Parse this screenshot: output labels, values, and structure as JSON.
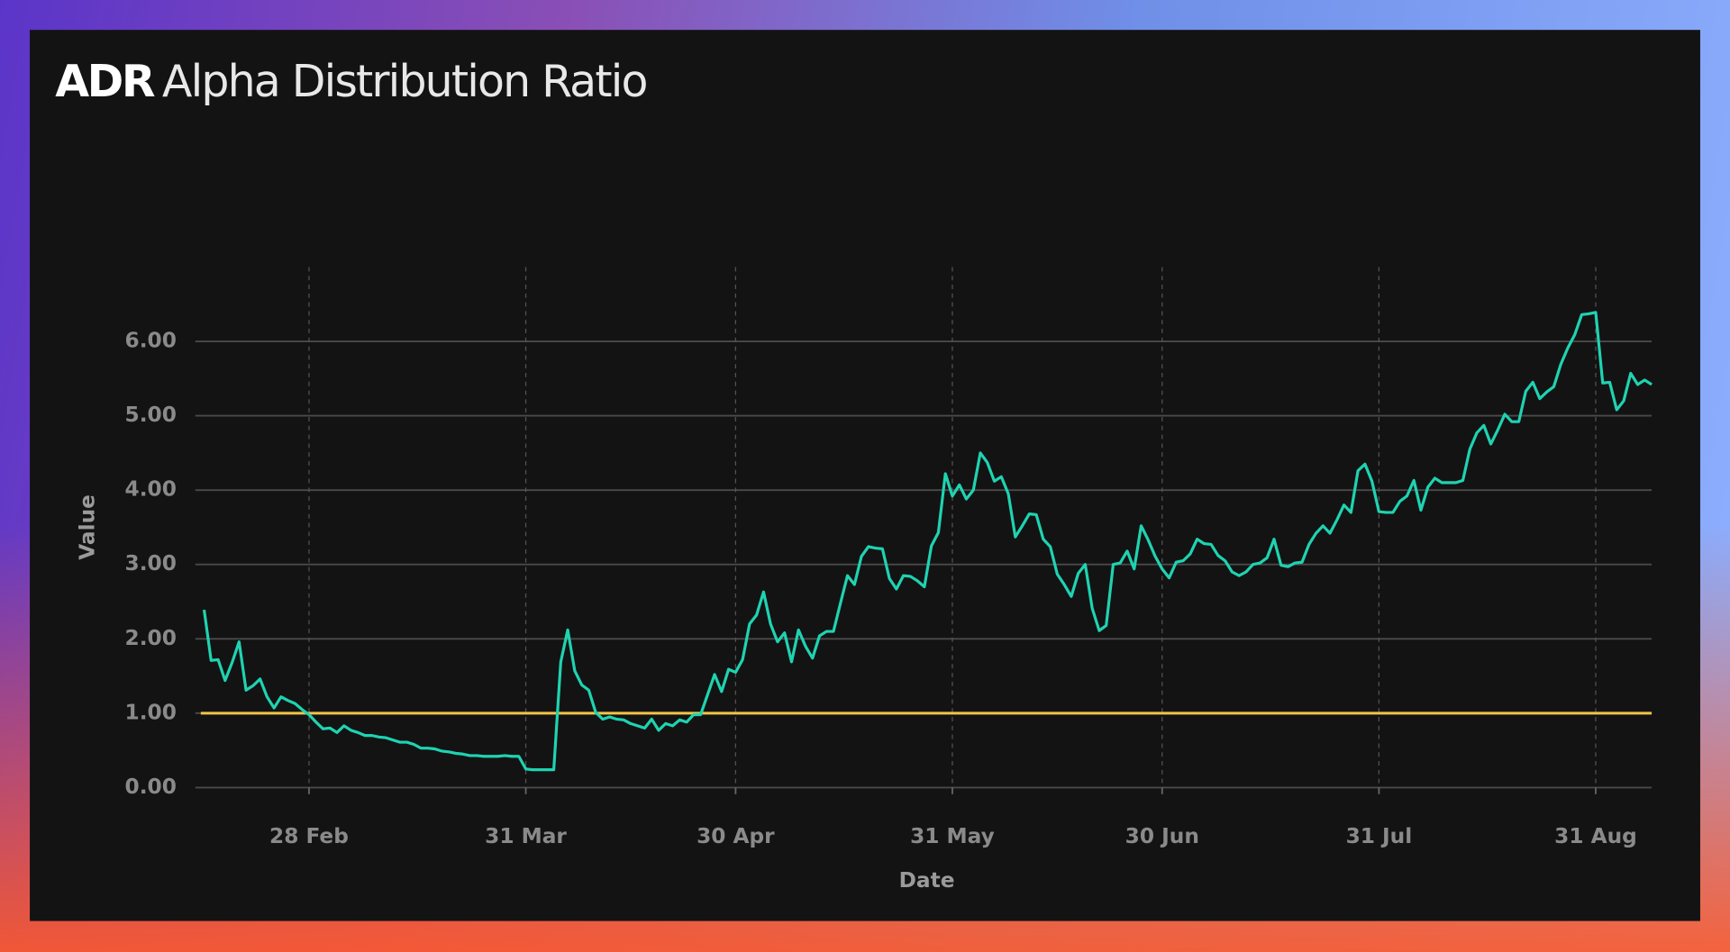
{
  "chart_data": {
    "type": "line",
    "title_abbr": "ADR",
    "title": "Alpha Distribution Ratio",
    "x_label": "Date",
    "y_label": "Value",
    "color": "#1fd3b1",
    "categories": [
      "13 Feb",
      "14 Feb",
      "15 Feb",
      "16 Feb",
      "17 Feb",
      "18 Feb",
      "19 Feb",
      "20 Feb",
      "21 Feb",
      "22 Feb",
      "23 Feb",
      "24 Feb",
      "25 Feb",
      "26 Feb",
      "27 Feb",
      "28 Feb",
      "1 Mar",
      "2 Mar",
      "3 Mar",
      "4 Mar",
      "5 Mar",
      "6 Mar",
      "7 Mar",
      "8 Mar",
      "9 Mar",
      "10 Mar",
      "11 Mar",
      "12 Mar",
      "13 Mar",
      "14 Mar",
      "15 Mar",
      "16 Mar",
      "17 Mar",
      "18 Mar",
      "19 Mar",
      "20 Mar",
      "21 Mar",
      "22 Mar",
      "23 Mar",
      "24 Mar",
      "25 Mar",
      "26 Mar",
      "27 Mar",
      "28 Mar",
      "29 Mar",
      "30 Mar",
      "31 Mar",
      "1 Apr",
      "2 Apr",
      "3 Apr",
      "4 Apr",
      "5 Apr",
      "6 Apr",
      "7 Apr",
      "8 Apr",
      "9 Apr",
      "10 Apr",
      "11 Apr",
      "12 Apr",
      "13 Apr",
      "14 Apr",
      "15 Apr",
      "16 Apr",
      "17 Apr",
      "18 Apr",
      "19 Apr",
      "20 Apr",
      "21 Apr",
      "22 Apr",
      "23 Apr",
      "24 Apr",
      "25 Apr",
      "26 Apr",
      "27 Apr",
      "28 Apr",
      "29 Apr",
      "30 Apr",
      "1 May",
      "2 May",
      "3 May",
      "4 May",
      "5 May",
      "6 May",
      "7 May",
      "8 May",
      "9 May",
      "10 May",
      "11 May",
      "12 May",
      "13 May",
      "14 May",
      "15 May",
      "16 May",
      "17 May",
      "18 May",
      "19 May",
      "20 May",
      "21 May",
      "22 May",
      "23 May",
      "24 May",
      "25 May",
      "26 May",
      "27 May",
      "28 May",
      "29 May",
      "30 May",
      "31 May",
      "1 Jun",
      "2 Jun",
      "3 Jun",
      "4 Jun",
      "5 Jun",
      "6 Jun",
      "7 Jun",
      "8 Jun",
      "9 Jun",
      "10 Jun",
      "11 Jun",
      "12 Jun",
      "13 Jun",
      "14 Jun",
      "15 Jun",
      "16 Jun",
      "17 Jun",
      "18 Jun",
      "19 Jun",
      "20 Jun",
      "21 Jun",
      "22 Jun",
      "23 Jun",
      "24 Jun",
      "25 Jun",
      "26 Jun",
      "27 Jun",
      "28 Jun",
      "29 Jun",
      "30 Jun",
      "1 Jul",
      "2 Jul",
      "3 Jul",
      "4 Jul",
      "5 Jul",
      "6 Jul",
      "7 Jul",
      "8 Jul",
      "9 Jul",
      "10 Jul",
      "11 Jul",
      "12 Jul",
      "13 Jul",
      "14 Jul",
      "15 Jul",
      "16 Jul",
      "17 Jul",
      "18 Jul",
      "19 Jul",
      "20 Jul",
      "21 Jul",
      "22 Jul",
      "23 Jul",
      "24 Jul",
      "25 Jul",
      "26 Jul",
      "27 Jul",
      "28 Jul",
      "29 Jul",
      "30 Jul",
      "31 Jul",
      "1 Aug",
      "2 Aug",
      "3 Aug",
      "4 Aug",
      "5 Aug",
      "6 Aug",
      "7 Aug",
      "8 Aug",
      "9 Aug",
      "10 Aug",
      "11 Aug",
      "12 Aug",
      "13 Aug",
      "14 Aug",
      "15 Aug",
      "16 Aug",
      "17 Aug",
      "18 Aug",
      "19 Aug",
      "20 Aug",
      "21 Aug",
      "22 Aug",
      "23 Aug",
      "24 Aug",
      "25 Aug",
      "26 Aug",
      "27 Aug",
      "28 Aug",
      "29 Aug",
      "30 Aug",
      "31 Aug",
      "1 Sep",
      "2 Sep",
      "3 Sep",
      "4 Sep",
      "5 Sep",
      "6 Sep",
      "7 Sep",
      "8 Sep"
    ],
    "values": [
      2.39,
      1.71,
      1.72,
      1.44,
      1.68,
      1.96,
      1.31,
      1.37,
      1.46,
      1.22,
      1.07,
      1.22,
      1.17,
      1.13,
      1.05,
      0.98,
      0.88,
      0.79,
      0.8,
      0.74,
      0.83,
      0.77,
      0.74,
      0.7,
      0.7,
      0.68,
      0.67,
      0.64,
      0.61,
      0.61,
      0.58,
      0.53,
      0.53,
      0.52,
      0.49,
      0.48,
      0.46,
      0.45,
      0.43,
      0.43,
      0.42,
      0.42,
      0.42,
      0.43,
      0.42,
      0.42,
      0.25,
      0.24,
      0.24,
      0.24,
      0.24,
      1.69,
      2.12,
      1.57,
      1.38,
      1.31,
      1.01,
      0.92,
      0.95,
      0.92,
      0.91,
      0.86,
      0.83,
      0.8,
      0.92,
      0.77,
      0.86,
      0.83,
      0.91,
      0.88,
      0.98,
      0.98,
      1.25,
      1.52,
      1.29,
      1.59,
      1.55,
      1.72,
      2.2,
      2.32,
      2.63,
      2.2,
      1.96,
      2.08,
      1.69,
      2.12,
      1.9,
      1.74,
      2.04,
      2.1,
      2.1,
      2.48,
      2.85,
      2.73,
      3.11,
      3.24,
      3.22,
      3.21,
      2.81,
      2.67,
      2.85,
      2.84,
      2.78,
      2.7,
      3.25,
      3.43,
      4.22,
      3.92,
      4.07,
      3.88,
      4.0,
      4.5,
      4.37,
      4.12,
      4.18,
      3.95,
      3.37,
      3.52,
      3.68,
      3.67,
      3.34,
      3.24,
      2.87,
      2.73,
      2.57,
      2.88,
      3.0,
      2.41,
      2.11,
      2.18,
      3.0,
      3.02,
      3.18,
      2.94,
      3.52,
      3.33,
      3.11,
      2.94,
      2.82,
      3.03,
      3.05,
      3.14,
      3.34,
      3.28,
      3.27,
      3.12,
      3.05,
      2.9,
      2.85,
      2.9,
      3.0,
      3.02,
      3.09,
      3.34,
      2.99,
      2.97,
      3.02,
      3.03,
      3.27,
      3.42,
      3.52,
      3.42,
      3.6,
      3.8,
      3.7,
      4.26,
      4.35,
      4.12,
      3.71,
      3.7,
      3.7,
      3.85,
      3.92,
      4.13,
      3.73,
      4.04,
      4.16,
      4.1,
      4.1,
      4.1,
      4.13,
      4.55,
      4.77,
      4.87,
      4.62,
      4.81,
      5.02,
      4.92,
      4.92,
      5.33,
      5.45,
      5.23,
      5.32,
      5.39,
      5.69,
      5.91,
      6.09,
      6.36,
      6.37,
      6.39,
      5.44,
      5.45,
      5.08,
      5.2,
      5.57,
      5.42,
      5.48,
      5.42
    ],
    "xticks": [
      "28 Feb",
      "31 Mar",
      "30 Apr",
      "31 May",
      "30 Jun",
      "31 Jul",
      "31 Aug"
    ],
    "ylim": [
      0,
      7
    ],
    "yticks": [
      {
        "value": 0,
        "label": "0.00"
      },
      {
        "value": 1,
        "label": "1.00"
      },
      {
        "value": 2,
        "label": "2.00"
      },
      {
        "value": 3,
        "label": "3.00"
      },
      {
        "value": 4,
        "label": "4.00"
      },
      {
        "value": 5,
        "label": "5.00"
      },
      {
        "value": 6,
        "label": "6.00"
      }
    ],
    "reference_line": {
      "value": 1,
      "color": "#f2c447"
    },
    "grid": true
  }
}
